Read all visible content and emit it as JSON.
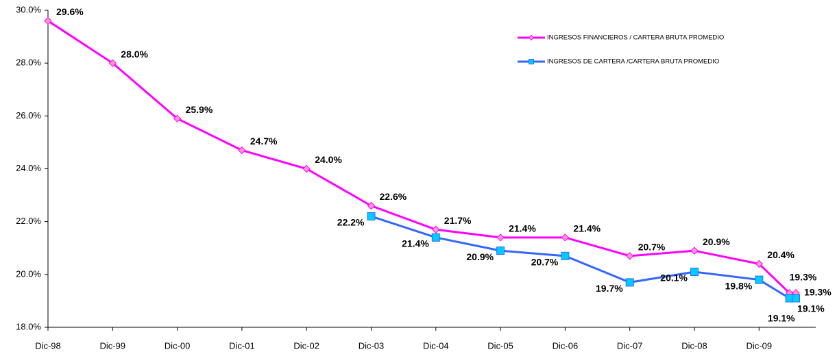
{
  "chart_data": {
    "type": "line",
    "categories": [
      "Dic-98",
      "Dic-99",
      "Dic-00",
      "Dic-01",
      "Dic-02",
      "Dic-03",
      "Dic-04",
      "Dic-05",
      "Dic-06",
      "Dic-07",
      "Dic-08",
      "Dic-09",
      null,
      null
    ],
    "series": [
      {
        "name": "INGRESOS FINANCIEROS / CARTERA BRUTA PROMEDIO",
        "color": "#ff00ff",
        "marker_color": "#ff99cc",
        "marker": "diamond",
        "values": [
          29.6,
          28.0,
          25.9,
          24.7,
          24.0,
          22.6,
          21.7,
          21.4,
          21.4,
          20.7,
          20.9,
          20.4,
          19.3,
          19.3
        ],
        "value_labels": [
          "29.6%",
          "28.0%",
          "25.9%",
          "24.7%",
          "24.0%",
          "22.6%",
          "21.7%",
          "21.4%",
          "21.4%",
          "20.7%",
          "20.9%",
          "20.4%",
          "19.3%",
          "19.3%"
        ]
      },
      {
        "name": "INGRESOS DE CARTERA /CARTERA BRUTA PROMEDIO",
        "color": "#3366ff",
        "marker_color": "#00ccff",
        "marker": "square",
        "values": [
          null,
          null,
          null,
          null,
          null,
          22.2,
          21.4,
          20.9,
          20.7,
          19.7,
          20.1,
          19.8,
          19.1,
          19.1
        ],
        "value_labels": [
          null,
          null,
          null,
          null,
          null,
          "22.2%",
          "21.4%",
          "20.9%",
          "20.7%",
          "19.7%",
          "20.1%",
          "19.8%",
          "19.1%",
          "19.1%"
        ]
      }
    ],
    "ylim": [
      18,
      30
    ],
    "yticks": [
      {
        "value": 18,
        "label": "18.0%"
      },
      {
        "value": 20,
        "label": "20.0%"
      },
      {
        "value": 22,
        "label": "22.0%"
      },
      {
        "value": 24,
        "label": "24.0%"
      },
      {
        "value": 26,
        "label": "26.0%"
      },
      {
        "value": 28,
        "label": "28.0%"
      },
      {
        "value": 30,
        "label": "30.0%"
      }
    ],
    "grid": false,
    "legend": "top-right"
  }
}
